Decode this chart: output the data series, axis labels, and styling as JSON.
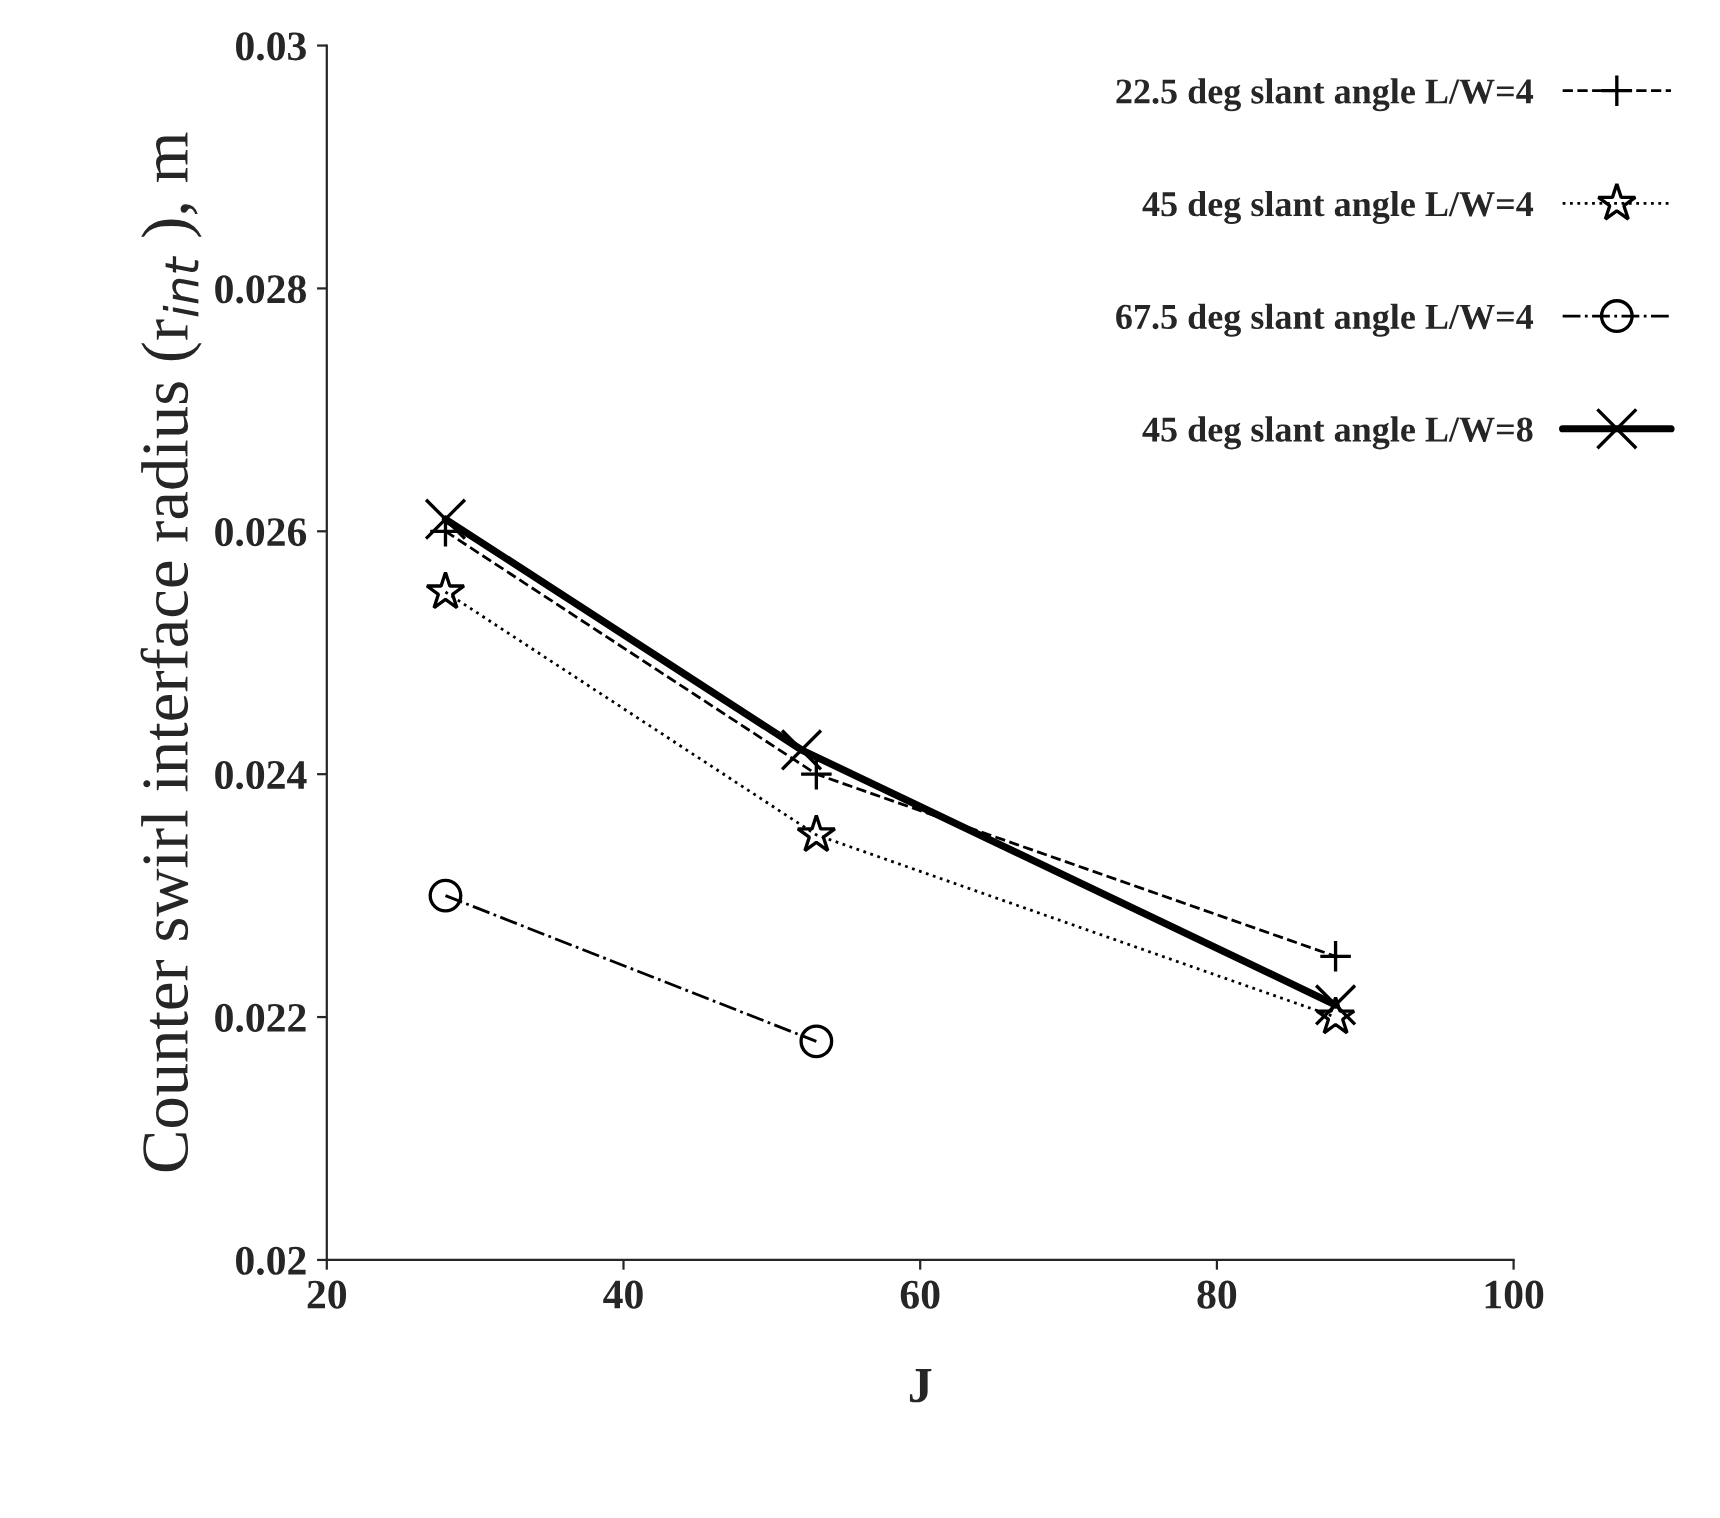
{
  "chart_data": {
    "type": "line",
    "xlabel": "J",
    "ylabel": "Counter swirl interface radius (r$_{int}$ ), m",
    "xlim": [
      20,
      100
    ],
    "xticks": [
      20,
      40,
      60,
      80,
      100
    ],
    "ylim": [
      0.02,
      0.03
    ],
    "yticks": [
      {
        "value": 0.02,
        "label": "0.02"
      },
      {
        "value": 0.022,
        "label": "0.022"
      },
      {
        "value": 0.024,
        "label": "0.024"
      },
      {
        "value": 0.026,
        "label": "0.026"
      },
      {
        "value": 0.028,
        "label": "0.028"
      },
      {
        "value": 0.03,
        "label": "0.03"
      }
    ],
    "grid": false,
    "legend": "top right",
    "series": [
      {
        "name": "22.5 deg slant angle L/W=4",
        "color": "#000000",
        "x": [
          28,
          53,
          88
        ],
        "values": [
          0.026,
          0.024,
          0.0225
        ],
        "marker": "plus",
        "line_style": "dashed"
      },
      {
        "name": "45 deg slant angle L/W=4",
        "color": "#000000",
        "x": [
          28,
          53,
          88
        ],
        "values": [
          0.0255,
          0.0235,
          0.022
        ],
        "marker": "star",
        "line_style": "dotted"
      },
      {
        "name": "67.5 deg slant angle L/W=4",
        "color": "#000000",
        "x": [
          28,
          53
        ],
        "values": [
          0.023,
          0.0218
        ],
        "marker": "circle",
        "line_style": "dashdot"
      },
      {
        "name": "45 deg slant angle L/W=8",
        "color": "#000000",
        "x": [
          28,
          52,
          88
        ],
        "values": [
          0.0261,
          0.0242,
          0.0221
        ],
        "marker": "cross",
        "line_style": "solid"
      }
    ]
  }
}
